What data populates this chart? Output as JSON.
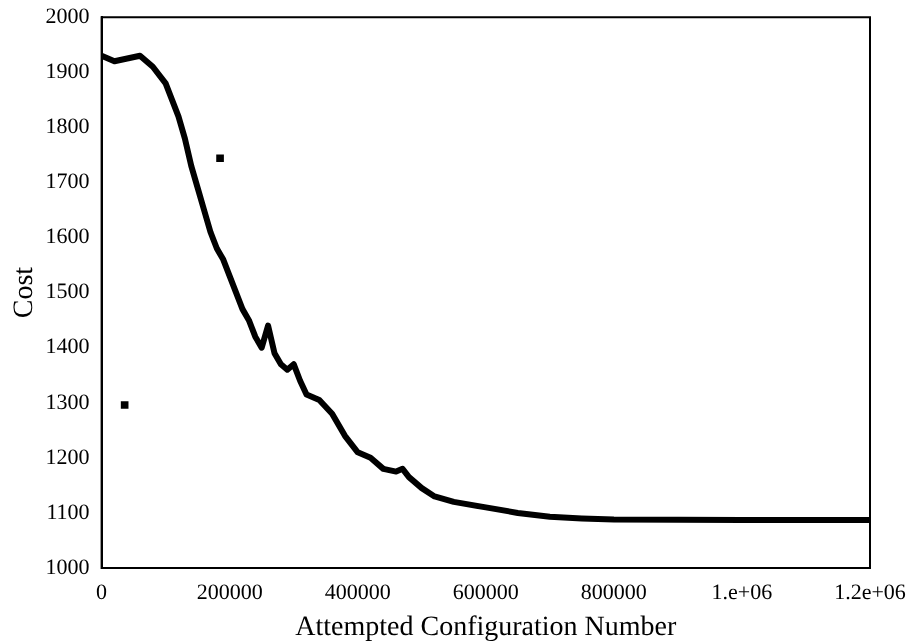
{
  "chart_data": {
    "type": "line",
    "xlabel": "Attempted Configuration Number",
    "ylabel": "Cost",
    "xlim": [
      0,
      1200000
    ],
    "ylim": [
      1000,
      2000
    ],
    "xticks": [
      0,
      200000,
      400000,
      600000,
      800000,
      {
        "value": 1000000,
        "label": "1.e+06"
      },
      {
        "value": 1200000,
        "label": "1.2e+06"
      }
    ],
    "yticks": [
      1000,
      1100,
      1200,
      1300,
      1400,
      1500,
      1600,
      1700,
      1800,
      1900,
      2000
    ],
    "grid": false,
    "legend": false,
    "marker": "none",
    "line_style": "solid",
    "series": [
      {
        "color": "#000000",
        "x": [
          0,
          20000,
          40000,
          60000,
          80000,
          100000,
          110000,
          120000,
          130000,
          140000,
          150000,
          160000,
          170000,
          180000,
          190000,
          200000,
          210000,
          220000,
          230000,
          240000,
          250000,
          260000,
          270000,
          280000,
          290000,
          300000,
          310000,
          320000,
          340000,
          360000,
          380000,
          400000,
          420000,
          440000,
          460000,
          470000,
          480000,
          500000,
          520000,
          550000,
          600000,
          650000,
          700000,
          750000,
          800000,
          1000000,
          1200000
        ],
        "values": [
          1930,
          1920,
          1925,
          1930,
          1910,
          1880,
          1850,
          1820,
          1780,
          1730,
          1690,
          1650,
          1610,
          1580,
          1560,
          1530,
          1500,
          1470,
          1450,
          1420,
          1400,
          1440,
          1390,
          1370,
          1360,
          1370,
          1340,
          1315,
          1305,
          1280,
          1240,
          1210,
          1200,
          1180,
          1175,
          1180,
          1165,
          1145,
          1130,
          1120,
          1110,
          1100,
          1093,
          1090,
          1088,
          1087,
          1087
        ]
      },
      {
        "type": "scatter",
        "color": "#000000",
        "marker": "square",
        "x": [
          185000,
          36000
        ],
        "values": [
          1744,
          1296
        ]
      }
    ]
  }
}
